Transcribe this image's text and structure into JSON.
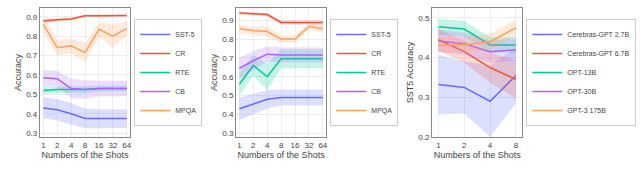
{
  "chart_data": [
    {
      "type": "line",
      "xlabel": "Numbers of the Shots",
      "ylabel": "Accuracy",
      "x": [
        1,
        2,
        4,
        8,
        16,
        32,
        64
      ],
      "log": "x",
      "xlim": [
        0.8409,
        76.1093
      ],
      "xticks": [
        1,
        2,
        4,
        8,
        16,
        32,
        64
      ],
      "ylim": [
        0.28,
        0.945
      ],
      "yticks": [
        0.3,
        0.4,
        0.5,
        0.6,
        0.7,
        0.8,
        0.9
      ],
      "grid": true,
      "legend": "right",
      "series": [
        {
          "name": "SST-5",
          "values": [
            0.43,
            0.42,
            0.4,
            0.375,
            0.375,
            0.375,
            0.375
          ],
          "std": [
            0.055,
            0.055,
            0.055,
            0.05,
            0.048,
            0.048,
            0.048
          ]
        },
        {
          "name": "CR",
          "values": [
            0.878,
            0.885,
            0.888,
            0.905,
            0.905,
            0.906,
            0.906
          ],
          "std": [
            0.012,
            0.008,
            0.008,
            0.006,
            0.006,
            0.005,
            0.005
          ]
        },
        {
          "name": "RTE",
          "values": [
            0.52,
            0.525,
            0.525,
            0.525,
            0.53,
            0.53,
            0.53
          ],
          "std": [
            0.02,
            0.018,
            0.018,
            0.018,
            0.015,
            0.015,
            0.015
          ]
        },
        {
          "name": "CB",
          "values": [
            0.585,
            0.58,
            0.53,
            0.525,
            0.53,
            0.53,
            0.53
          ],
          "std": [
            0.04,
            0.04,
            0.05,
            0.048,
            0.04,
            0.04,
            0.04
          ]
        },
        {
          "name": "MPQA",
          "values": [
            0.86,
            0.74,
            0.75,
            0.715,
            0.835,
            0.8,
            0.84
          ],
          "std": [
            0.04,
            0.04,
            0.038,
            0.048,
            0.038,
            0.06,
            0.038
          ]
        }
      ]
    },
    {
      "type": "line",
      "xlabel": "Numbers of the Shots",
      "ylabel": "Accuracy",
      "x": [
        1,
        2,
        4,
        8,
        16,
        32,
        64
      ],
      "log": "x",
      "xlim": [
        0.8409,
        76.1093
      ],
      "xticks": [
        1,
        2,
        4,
        8,
        16,
        32,
        64
      ],
      "ylim": [
        0.28,
        0.965
      ],
      "yticks": [
        0.3,
        0.4,
        0.5,
        0.6,
        0.7,
        0.8,
        0.9
      ],
      "grid": true,
      "legend": "right",
      "series": [
        {
          "name": "SST-5",
          "values": [
            0.43,
            0.455,
            0.48,
            0.49,
            0.49,
            0.49,
            0.49
          ],
          "std": [
            0.06,
            0.055,
            0.048,
            0.042,
            0.042,
            0.042,
            0.042
          ]
        },
        {
          "name": "CR",
          "values": [
            0.938,
            0.935,
            0.93,
            0.888,
            0.888,
            0.888,
            0.888
          ],
          "std": [
            0.008,
            0.008,
            0.009,
            0.01,
            0.01,
            0.01,
            0.01
          ]
        },
        {
          "name": "RTE",
          "values": [
            0.56,
            0.66,
            0.6,
            0.695,
            0.695,
            0.695,
            0.695
          ],
          "std": [
            0.06,
            0.055,
            0.07,
            0.05,
            0.05,
            0.05,
            0.05
          ]
        },
        {
          "name": "CB",
          "values": [
            0.645,
            0.685,
            0.72,
            0.715,
            0.715,
            0.715,
            0.715
          ],
          "std": [
            0.055,
            0.052,
            0.04,
            0.04,
            0.04,
            0.04,
            0.04
          ]
        },
        {
          "name": "MPQA",
          "values": [
            0.855,
            0.845,
            0.84,
            0.8,
            0.8,
            0.867,
            0.855
          ],
          "std": [
            0.022,
            0.022,
            0.028,
            0.02,
            0.02,
            0.018,
            0.022
          ]
        }
      ]
    },
    {
      "type": "line",
      "xlabel": "Numbers of the Shots",
      "ylabel": "SST5 Accuracy",
      "x": [
        1,
        2,
        4,
        8
      ],
      "log": "x",
      "xlim": [
        0.8409,
        9.5137
      ],
      "xticks": [
        1,
        2,
        4,
        8
      ],
      "ylim": [
        0.2,
        0.525
      ],
      "yticks": [
        0.2,
        0.3,
        0.4,
        0.5
      ],
      "grid": true,
      "legend": "right",
      "series": [
        {
          "name": "Cerebras-GPT 2.7B",
          "values": [
            0.332,
            0.325,
            0.29,
            0.355
          ],
          "std": [
            0.075,
            0.065,
            0.09,
            0.07
          ]
        },
        {
          "name": "Cerebras-GPT 6.7B",
          "values": [
            0.445,
            0.415,
            0.375,
            0.345
          ],
          "std": [
            0.028,
            0.028,
            0.038,
            0.048
          ]
        },
        {
          "name": "OPT-13B",
          "values": [
            0.478,
            0.472,
            0.432,
            0.432
          ],
          "std": [
            0.02,
            0.02,
            0.02,
            0.02
          ]
        },
        {
          "name": "OPT-30B",
          "values": [
            0.442,
            0.435,
            0.415,
            0.42
          ],
          "std": [
            0.028,
            0.028,
            0.028,
            0.028
          ]
        },
        {
          "name": "GPT-3 175B",
          "values": [
            0.432,
            0.432,
            0.44,
            0.475
          ],
          "std": [
            0.02,
            0.02,
            0.02,
            0.02
          ]
        }
      ]
    }
  ]
}
